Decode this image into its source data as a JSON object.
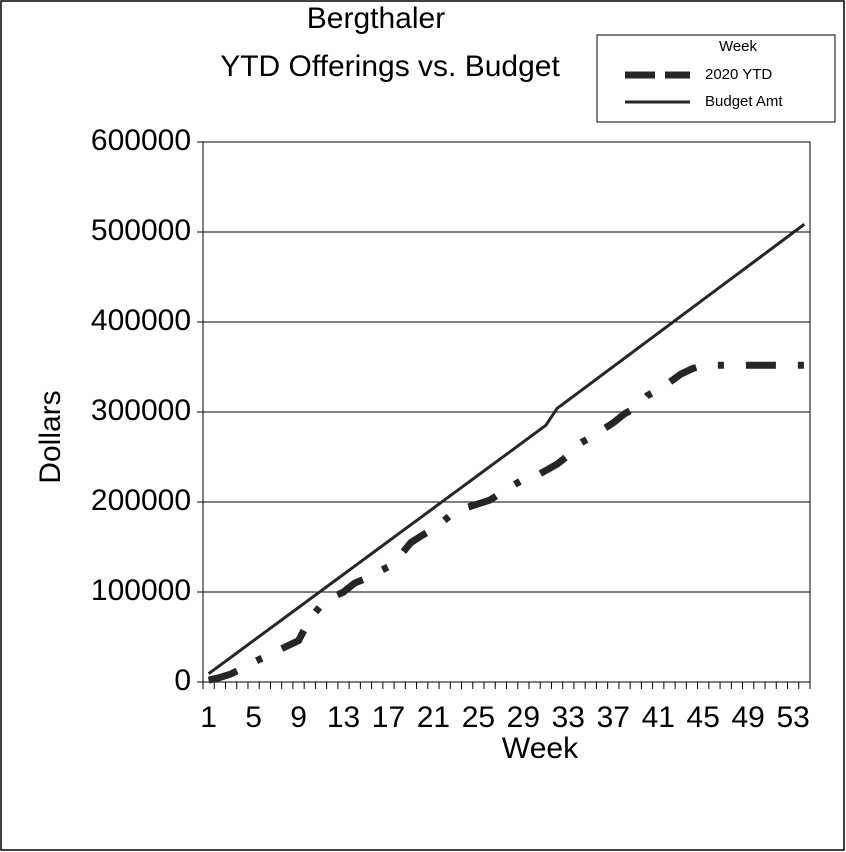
{
  "chart_data": {
    "type": "line",
    "title": [
      "Bergthaler",
      "YTD Offerings vs. Budget"
    ],
    "x_label": "Week",
    "y_label": "Dollars",
    "legend_title": "Week",
    "categories": [
      1,
      null,
      null,
      null,
      5,
      null,
      null,
      null,
      9,
      null,
      null,
      null,
      13,
      null,
      null,
      null,
      17,
      null,
      null,
      null,
      21,
      null,
      null,
      null,
      25,
      null,
      null,
      null,
      29,
      null,
      null,
      null,
      33,
      null,
      null,
      null,
      37,
      null,
      null,
      null,
      41,
      null,
      null,
      null,
      45,
      null,
      null,
      null,
      49,
      null,
      null,
      null,
      53,
      null
    ],
    "series": [
      {
        "name": "2020 YTD",
        "color": "#262626",
        "dashed": true,
        "values": [
          2000,
          5000,
          9000,
          15000,
          22000,
          28000,
          34000,
          40000,
          46000,
          70000,
          85000,
          94000,
          100000,
          110000,
          115000,
          122000,
          128000,
          140000,
          155000,
          163000,
          170000,
          180000,
          190000,
          194000,
          198000,
          202000,
          210000,
          218000,
          225000,
          228000,
          235000,
          242000,
          252000,
          265000,
          272000,
          280000,
          288000,
          298000,
          305000,
          318000,
          325000,
          333000,
          342000,
          348000,
          352000,
          352000,
          352000,
          352000,
          352000,
          352000,
          352000,
          352000,
          352000,
          352000
        ]
      },
      {
        "name": "Budget Amt",
        "color": "#262626",
        "dashed": false,
        "values": [
          9200,
          18400,
          27600,
          36800,
          46000,
          55200,
          64400,
          73600,
          82800,
          92000,
          101200,
          110400,
          119600,
          128800,
          138000,
          147200,
          156400,
          165600,
          174800,
          184000,
          193200,
          202400,
          211600,
          220800,
          230000,
          239200,
          248400,
          257600,
          266800,
          276000,
          285200,
          304000,
          313300,
          322600,
          331900,
          341200,
          350500,
          359800,
          369100,
          378400,
          387700,
          397000,
          406300,
          415600,
          424900,
          434200,
          443500,
          452800,
          462100,
          471400,
          480700,
          490000,
          499300,
          508600
        ]
      }
    ],
    "ylim": [
      0,
      600000
    ],
    "yticks": [
      0,
      100000,
      200000,
      300000,
      400000,
      500000,
      600000
    ],
    "grid": true,
    "legend": "top-right"
  }
}
